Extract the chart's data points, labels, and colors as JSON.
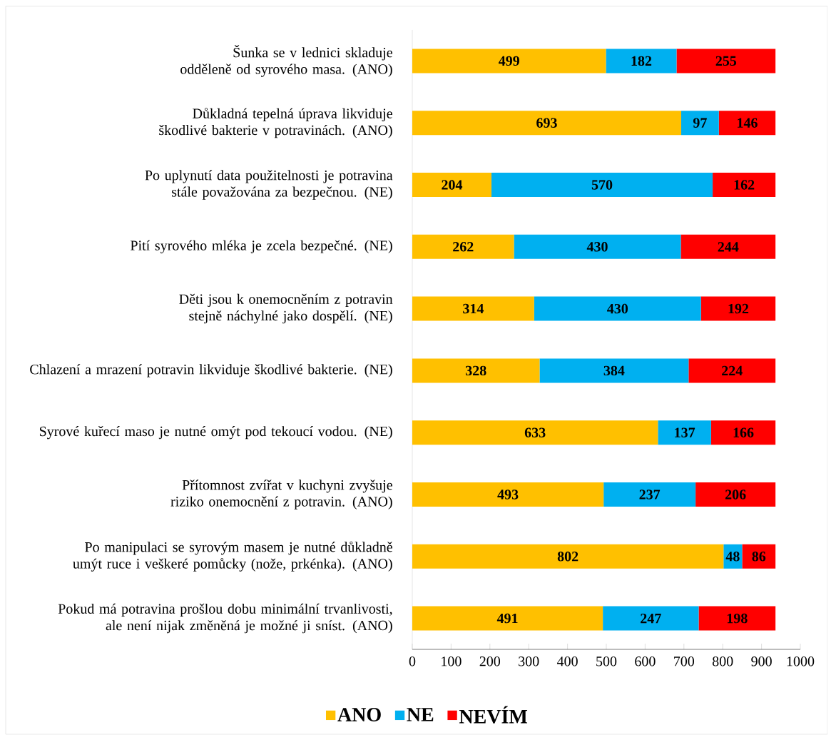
{
  "chart_data": {
    "type": "bar",
    "orientation": "horizontal",
    "stacked": true,
    "data_labels": true,
    "legend": "bottom",
    "grid": false,
    "categories": [
      "Šunka se v lednici skladuje odděleně od syrového masa. (ANO)",
      "Důkladná tepelná úprava likviduje škodlivé bakterie v potravinách. (ANO)",
      "Po uplynutí data použitelnosti je potravina stále považována za bezpečnou. (NE)",
      "Pití syrového mléka je zcela bezpečné. (NE)",
      "Děti jsou k onemocněním z potravin stejně náchylné jako dospělí. (NE)",
      "Chlazení a mrazení potravin likviduje škodlivé bakterie. (NE)",
      "Syrové kuřecí maso je nutné omýt pod tekoucí vodou. (NE)",
      "Přítomnost zvířat v kuchyni zvyšuje riziko onemocnění z potravin. (ANO)",
      "Po manipulaci se syrovým masem je nutné důkladně umýt ruce i veškeré pomůcky (nože, prkénka). (ANO)",
      "Pokud má potravina prošlou dobu minimální trvanlivosti, ale není nijak změněná je možné ji sníst. (ANO)"
    ],
    "series": [
      {
        "name": "ANO",
        "color": "#ffc000",
        "values": [
          499,
          693,
          204,
          262,
          314,
          328,
          633,
          493,
          802,
          491
        ]
      },
      {
        "name": "NE",
        "color": "#00b0f0",
        "values": [
          182,
          97,
          570,
          430,
          430,
          384,
          137,
          237,
          48,
          247
        ]
      },
      {
        "name": "NEVÍM",
        "color": "#ff0000",
        "values": [
          255,
          146,
          162,
          244,
          192,
          224,
          166,
          206,
          86,
          198
        ]
      }
    ],
    "xlim": [
      0,
      1000
    ],
    "xticks": [
      0,
      100,
      200,
      300,
      400,
      500,
      600,
      700,
      800,
      900,
      1000
    ]
  }
}
